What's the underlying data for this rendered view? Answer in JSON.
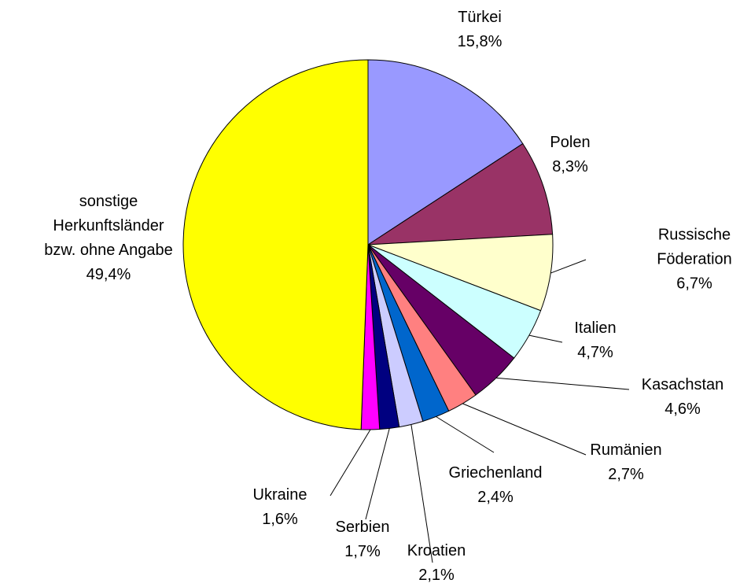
{
  "chart_data": {
    "type": "pie",
    "categories": [
      "Türkei",
      "Polen",
      "Russische\nFöderation",
      "Italien",
      "Kasachstan",
      "Rumänien",
      "Griechenland",
      "Kroatien",
      "Serbien",
      "Ukraine",
      "sonstige\nHerkunftsländer\nbzw. ohne Angabe"
    ],
    "values": [
      15.8,
      8.3,
      6.7,
      4.7,
      4.6,
      2.7,
      2.4,
      2.1,
      1.7,
      1.6,
      49.4
    ],
    "value_labels": [
      "15,8%",
      "8,3%",
      "6,7%",
      "4,7%",
      "4,6%",
      "2,7%",
      "2,4%",
      "2,1%",
      "1,7%",
      "1,6%",
      "49,4%"
    ],
    "colors": [
      "#9999ff",
      "#993366",
      "#ffffcc",
      "#ccffff",
      "#660066",
      "#ff8080",
      "#0066cc",
      "#ccccff",
      "#000080",
      "#ff00ff",
      "#ffff00"
    ]
  }
}
